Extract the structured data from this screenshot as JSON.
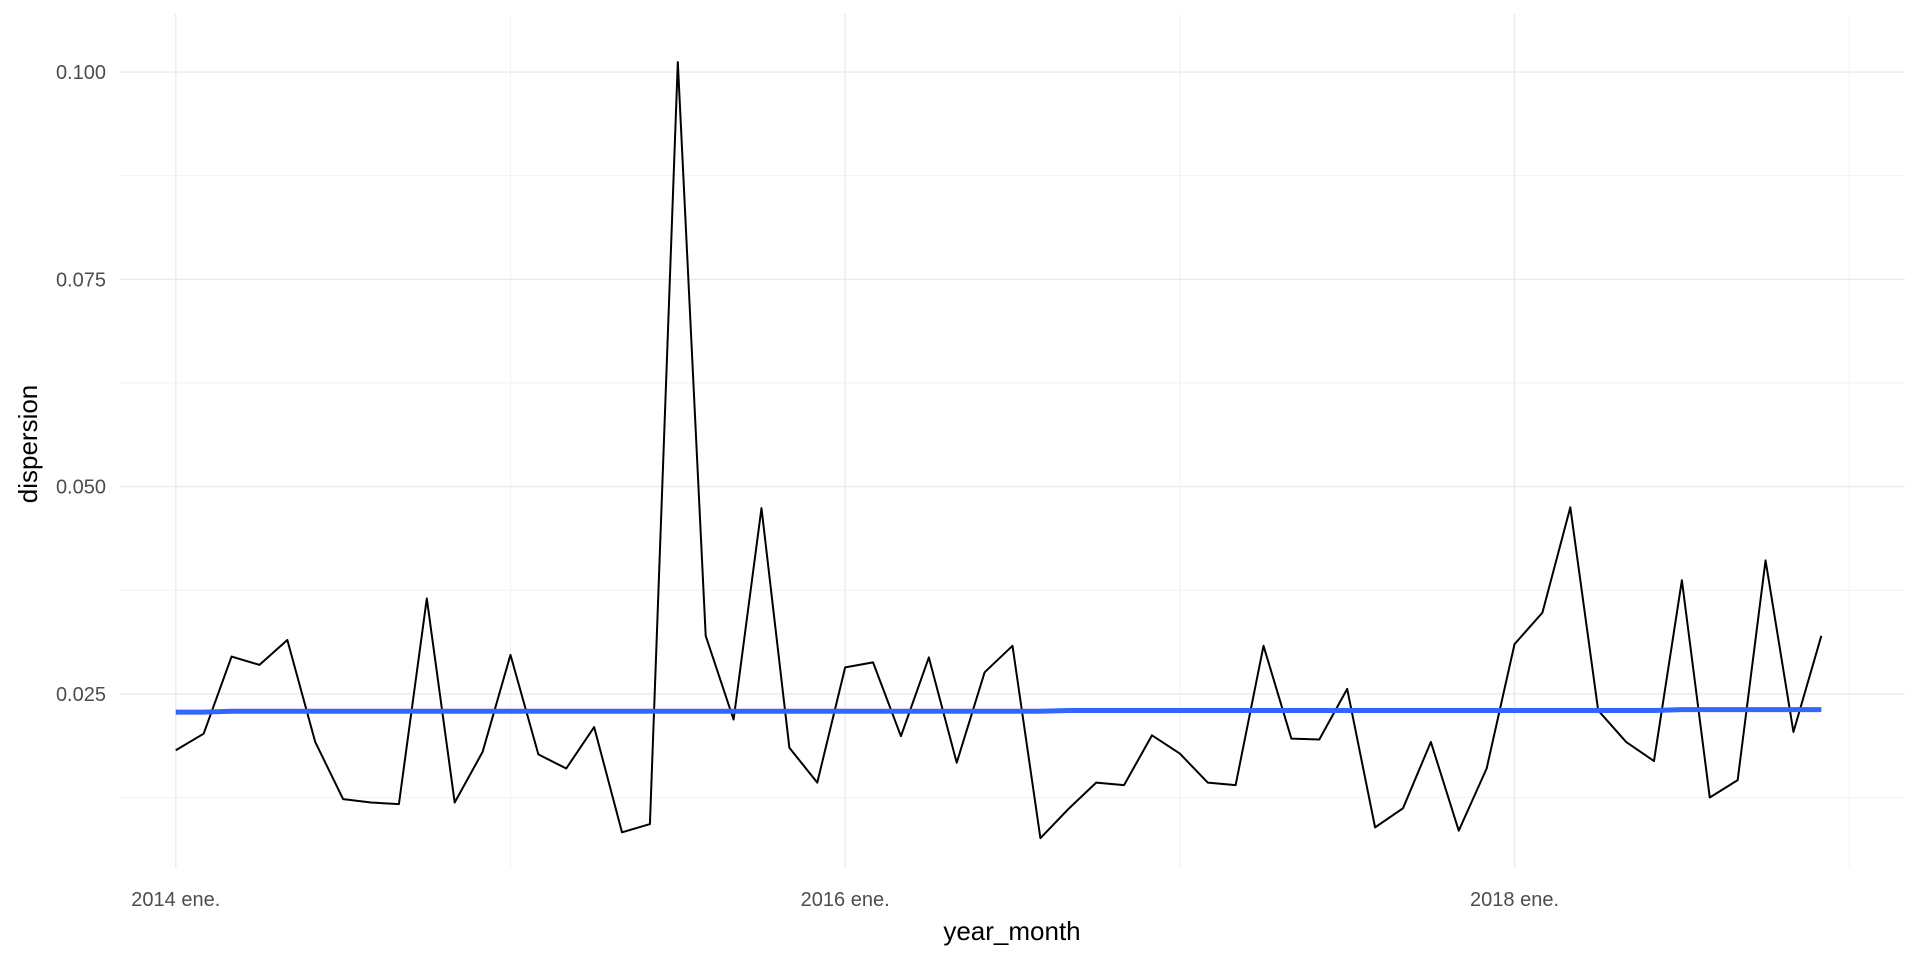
{
  "chart_data": {
    "type": "line",
    "xlabel": "year_month",
    "ylabel": "dispersion",
    "x_tick_labels": [
      "2014 ene.",
      "2016 ene.",
      "2018 ene."
    ],
    "y_tick_labels": [
      "0.025",
      "0.050",
      "0.075",
      "0.100"
    ],
    "x_ticks": [
      "2014-01",
      "2016-01",
      "2018-01"
    ],
    "y_ticks": [
      0.025,
      0.05,
      0.075,
      0.1
    ],
    "xlim": [
      "2013-11",
      "2019-03"
    ],
    "ylim": [
      0.004,
      0.107
    ],
    "grid": true,
    "x": [
      "2014-01",
      "2014-02",
      "2014-03",
      "2014-04",
      "2014-05",
      "2014-06",
      "2014-07",
      "2014-08",
      "2014-09",
      "2014-10",
      "2014-11",
      "2014-12",
      "2015-01",
      "2015-02",
      "2015-03",
      "2015-04",
      "2015-05",
      "2015-06",
      "2015-07",
      "2015-08",
      "2015-09",
      "2015-10",
      "2015-11",
      "2015-12",
      "2016-01",
      "2016-02",
      "2016-03",
      "2016-04",
      "2016-05",
      "2016-06",
      "2016-07",
      "2016-08",
      "2016-09",
      "2016-10",
      "2016-11",
      "2016-12",
      "2017-01",
      "2017-02",
      "2017-03",
      "2017-04",
      "2017-05",
      "2017-06",
      "2017-07",
      "2017-08",
      "2017-09",
      "2017-10",
      "2017-11",
      "2017-12",
      "2018-01",
      "2018-02",
      "2018-03",
      "2018-04",
      "2018-05",
      "2018-06",
      "2018-07",
      "2018-08",
      "2018-09",
      "2018-10",
      "2018-11",
      "2018-12"
    ],
    "series": [
      {
        "color": "#000000",
        "values": [
          0.0182,
          0.0202,
          0.0295,
          0.0285,
          0.0315,
          0.0192,
          0.0123,
          0.0119,
          0.0117,
          0.0365,
          0.0119,
          0.018,
          0.0297,
          0.0177,
          0.016,
          0.021,
          0.0083,
          0.0093,
          0.1012,
          0.032,
          0.0219,
          0.0474,
          0.0185,
          0.0143,
          0.0282,
          0.0288,
          0.0199,
          0.0294,
          0.0167,
          0.0276,
          0.0308,
          0.0076,
          0.0111,
          0.0143,
          0.014,
          0.02,
          0.0178,
          0.0143,
          0.014,
          0.0308,
          0.0196,
          0.0195,
          0.0256,
          0.0089,
          0.0112,
          0.0192,
          0.0085,
          0.016,
          0.031,
          0.0348,
          0.0475,
          0.023,
          0.0192,
          0.0169,
          0.0387,
          0.0125,
          0.0146,
          0.0411,
          0.0204,
          0.032
        ]
      },
      {
        "color": "#3366ff",
        "values": [
          0.0228,
          0.0228,
          0.0229,
          0.0229,
          0.0229,
          0.0229,
          0.0229,
          0.0229,
          0.0229,
          0.0229,
          0.0229,
          0.0229,
          0.0229,
          0.0229,
          0.0229,
          0.0229,
          0.0229,
          0.0229,
          0.0229,
          0.0229,
          0.0229,
          0.0229,
          0.0229,
          0.0229,
          0.0229,
          0.0229,
          0.0229,
          0.0229,
          0.0229,
          0.0229,
          0.0229,
          0.0229,
          0.023,
          0.023,
          0.023,
          0.023,
          0.023,
          0.023,
          0.023,
          0.023,
          0.023,
          0.023,
          0.023,
          0.023,
          0.023,
          0.023,
          0.023,
          0.023,
          0.023,
          0.023,
          0.023,
          0.023,
          0.023,
          0.023,
          0.0231,
          0.0231,
          0.0231,
          0.0231,
          0.0231,
          0.0231
        ]
      }
    ]
  }
}
